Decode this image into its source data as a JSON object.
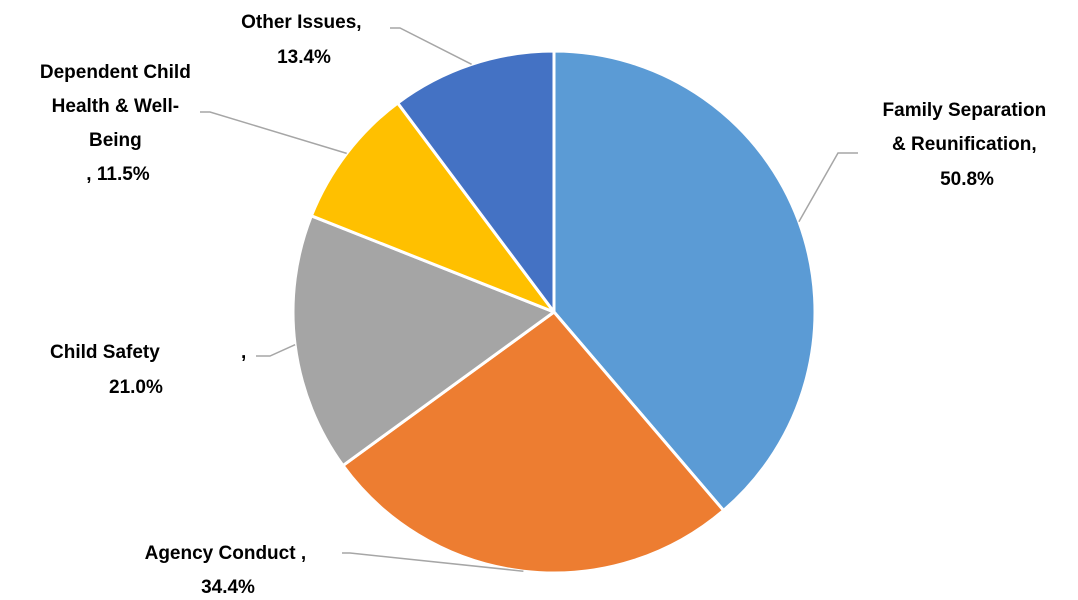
{
  "chart_data": {
    "type": "pie",
    "title": "",
    "slices": [
      {
        "name": "Family Separation & Reunification",
        "value": 50.8,
        "color": "#5b9bd5",
        "label_lines": [
          "Family Separation",
          "& Reunification,",
          "50.8%"
        ]
      },
      {
        "name": "Agency Conduct",
        "value": 34.4,
        "color": "#ed7d31",
        "label_lines": [
          "Agency Conduct ,",
          "34.4%"
        ]
      },
      {
        "name": "Child Safety",
        "value": 21.0,
        "color": "#a5a5a5",
        "label_lines": [
          "Child Safety",
          ",",
          "21.0%"
        ]
      },
      {
        "name": "Dependent Child Health & Well-Being",
        "value": 11.5,
        "color": "#ffc000",
        "label_lines": [
          "Dependent Child",
          "Health & Well-",
          "Being",
          ", 11.5%"
        ]
      },
      {
        "name": "Other Issues",
        "value": 13.4,
        "color": "#4472c4",
        "label_lines": [
          "Other Issues,",
          "13.4%"
        ]
      }
    ],
    "legend": "none",
    "data_labels": "outside-with-leader-lines"
  }
}
